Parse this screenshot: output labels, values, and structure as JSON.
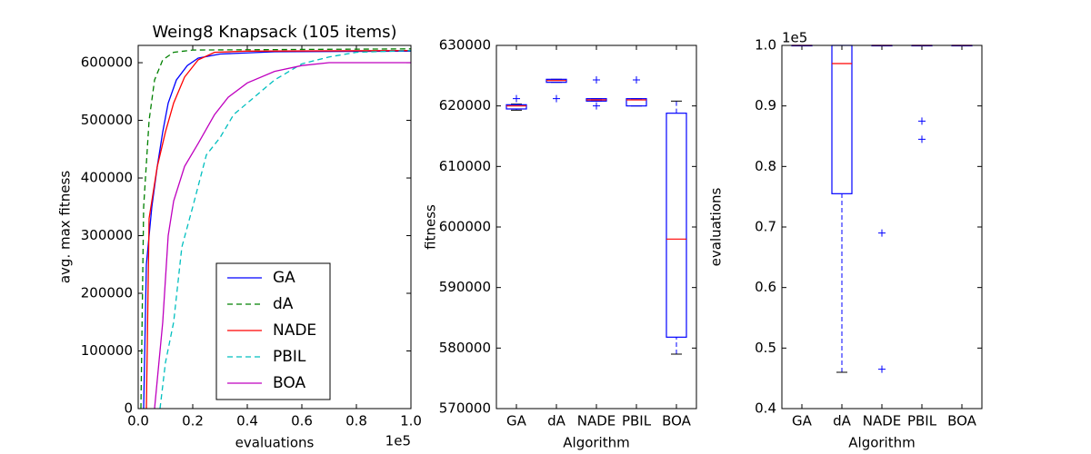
{
  "chart_data": [
    {
      "type": "line",
      "title": "Weing8 Knapsack (105 items)",
      "x_label": "evaluations",
      "y_label": "avg. max fitness",
      "x_offset_label": "1e5",
      "xlim": [
        0,
        1
      ],
      "xticks": [
        {
          "value": 0,
          "label": "0.0"
        },
        0.2,
        0.4,
        0.6,
        0.8,
        {
          "value": 1,
          "label": "1.0"
        }
      ],
      "ylim": [
        0,
        630000
      ],
      "yticks": [
        0,
        100000,
        200000,
        300000,
        400000,
        500000,
        600000
      ],
      "legend": "lower center",
      "series": [
        {
          "name": "GA",
          "color": "#0000ff",
          "linestyle": "solid",
          "x": [
            0.02,
            0.03,
            0.05,
            0.07,
            0.09,
            0.11,
            0.14,
            0.18,
            0.22,
            0.3,
            0.5,
            1.0
          ],
          "values": [
            0,
            250000,
            350000,
            420000,
            480000,
            530000,
            570000,
            595000,
            608000,
            615000,
            619000,
            620000
          ]
        },
        {
          "name": "dA",
          "color": "#008000",
          "linestyle": "dashed",
          "x": [
            0.01,
            0.02,
            0.04,
            0.06,
            0.09,
            0.13,
            0.2,
            1.0
          ],
          "values": [
            0,
            350000,
            500000,
            570000,
            605000,
            618000,
            622000,
            624000
          ]
        },
        {
          "name": "NADE",
          "color": "#ff0000",
          "linestyle": "solid",
          "x": [
            0.03,
            0.04,
            0.07,
            0.1,
            0.13,
            0.17,
            0.22,
            0.28,
            0.4,
            1.0
          ],
          "values": [
            0,
            330000,
            420000,
            480000,
            530000,
            575000,
            605000,
            618000,
            620000,
            621000
          ]
        },
        {
          "name": "PBIL",
          "color": "#00bfbf",
          "linestyle": "dashed",
          "x": [
            0.08,
            0.1,
            0.13,
            0.16,
            0.2,
            0.25,
            0.3,
            0.35,
            0.4,
            0.5,
            0.6,
            0.7,
            0.8,
            1.0
          ],
          "values": [
            0,
            80000,
            150000,
            280000,
            350000,
            440000,
            470000,
            510000,
            530000,
            570000,
            598000,
            610000,
            618000,
            621000
          ]
        },
        {
          "name": "BOA",
          "color": "#bf00bf",
          "linestyle": "solid",
          "x": [
            0.06,
            0.09,
            0.11,
            0.13,
            0.17,
            0.22,
            0.28,
            0.33,
            0.4,
            0.5,
            0.6,
            0.7,
            1.0
          ],
          "values": [
            0,
            150000,
            300000,
            360000,
            420000,
            460000,
            510000,
            540000,
            565000,
            585000,
            595000,
            600000,
            600000
          ]
        }
      ]
    },
    {
      "type": "box",
      "x_label": "Algorithm",
      "y_label": "fitness",
      "box_color": "#0000ff",
      "median_color": "#ff0000",
      "ylim": [
        570000,
        630000
      ],
      "yticks": [
        570000,
        580000,
        590000,
        600000,
        610000,
        620000,
        630000
      ],
      "categories": [
        "GA",
        "dA",
        "NADE",
        "PBIL",
        "BOA"
      ],
      "boxes": [
        {
          "whislo": 619300,
          "q1": 619500,
          "med": 620000,
          "q3": 620200,
          "whishi": 620300,
          "fliers": [
            621200
          ]
        },
        {
          "whislo": 623900,
          "q1": 623900,
          "med": 624200,
          "q3": 624400,
          "whishi": 624400,
          "fliers": [
            621200
          ]
        },
        {
          "whislo": 620800,
          "q1": 620800,
          "med": 621000,
          "q3": 621200,
          "whishi": 621200,
          "fliers": [
            624300,
            620000
          ]
        },
        {
          "whislo": 620000,
          "q1": 620000,
          "med": 621000,
          "q3": 621200,
          "whishi": 621200,
          "fliers": [
            624300
          ]
        },
        {
          "whislo": 579000,
          "q1": 581800,
          "med": 598000,
          "q3": 618800,
          "whishi": 620800,
          "fliers": []
        }
      ]
    },
    {
      "type": "box",
      "x_label": "Algorithm",
      "y_label": "evaluations",
      "box_color": "#0000ff",
      "median_color": "#ff0000",
      "y_offset_label": "1e5",
      "ylim": [
        0.4,
        1
      ],
      "yticks": [
        0.4,
        0.5,
        0.6,
        0.7,
        0.8,
        0.9,
        {
          "value": 1,
          "label": "1.0"
        }
      ],
      "categories": [
        "GA",
        "dA",
        "NADE",
        "PBIL",
        "BOA"
      ],
      "boxes": [
        {
          "whislo": 1,
          "q1": 1,
          "med": 1,
          "q3": 1,
          "whishi": 1,
          "fliers": []
        },
        {
          "whislo": 0.46,
          "q1": 0.755,
          "med": 0.97,
          "q3": 1,
          "whishi": 1,
          "fliers": []
        },
        {
          "whislo": 1,
          "q1": 1,
          "med": 1,
          "q3": 1,
          "whishi": 1,
          "fliers": [
            0.69,
            0.465
          ]
        },
        {
          "whislo": 1,
          "q1": 1,
          "med": 1,
          "q3": 1,
          "whishi": 1,
          "fliers": [
            0.875,
            0.845
          ]
        },
        {
          "whislo": 1,
          "q1": 1,
          "med": 1,
          "q3": 1,
          "whishi": 1,
          "fliers": []
        }
      ]
    }
  ]
}
